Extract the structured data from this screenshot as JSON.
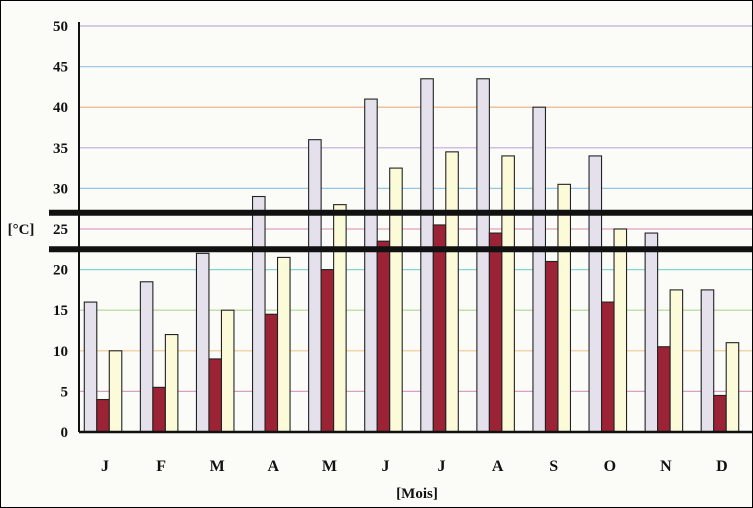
{
  "chart_data": {
    "type": "bar",
    "title": "",
    "xlabel": "[Mois]",
    "ylabel": "[°C]",
    "ylim": [
      0,
      50
    ],
    "yticks": [
      0,
      5,
      10,
      15,
      20,
      25,
      30,
      35,
      40,
      45,
      50
    ],
    "grid": true,
    "legend": "none",
    "categories": [
      "J",
      "F",
      "M",
      "A",
      "M",
      "J",
      "J",
      "A",
      "S",
      "O",
      "N",
      "D"
    ],
    "series": [
      {
        "color": "#e4e1ec",
        "values": [
          16,
          18.5,
          22,
          29,
          36,
          41,
          43.5,
          43.5,
          40,
          34,
          24.5,
          17.5
        ]
      },
      {
        "color": "#9b2335",
        "values": [
          4,
          5.5,
          9,
          14.5,
          20,
          23.5,
          25.5,
          24.5,
          21,
          16,
          10.5,
          4.5
        ]
      },
      {
        "color": "#fcfbd9",
        "values": [
          10,
          12,
          15,
          21.5,
          28,
          32.5,
          34.5,
          34,
          30.5,
          25,
          17.5,
          11
        ]
      }
    ],
    "reference_lines": [
      {
        "value": 27,
        "color": "#111111"
      },
      {
        "value": 22.5,
        "color": "#111111"
      }
    ],
    "gridline_colors": [
      "#9aa5b8",
      "#d8a0c8",
      "#f0c890",
      "#b0d890",
      "#80d8d0",
      "#e0a0c0",
      "#90c8e8",
      "#c8a8e0",
      "#e8b080",
      "#a0c8e0",
      "#c0b0d8"
    ]
  }
}
